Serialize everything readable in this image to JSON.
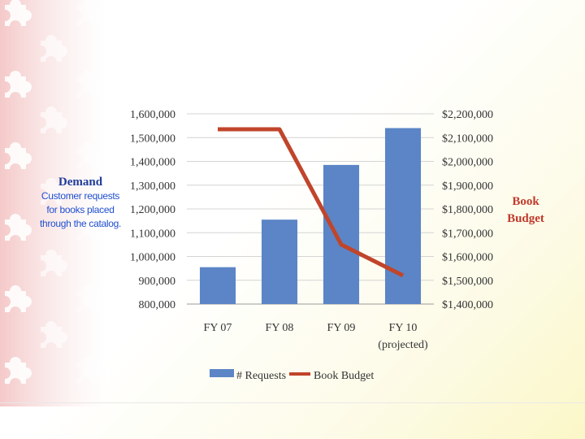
{
  "annotations": {
    "left_title": "Demand",
    "left_desc": "Customer requests for books placed through the catalog.",
    "right_title": "Book Budget"
  },
  "colors": {
    "bar": "#5b85c6",
    "line": "#c0452b",
    "puzzle": "#f6d3d3"
  },
  "chart_data": {
    "type": "bar",
    "categories": [
      "FY 07",
      "FY 08",
      "FY 09",
      "FY 10"
    ],
    "category_sublabels": [
      "",
      "",
      "",
      "(projected)"
    ],
    "series": [
      {
        "name": "# Requests",
        "type": "bar",
        "axis": "left",
        "values": [
          955000,
          1155000,
          1385000,
          1540000
        ]
      },
      {
        "name": "Book Budget",
        "type": "line",
        "axis": "right",
        "values": [
          2135000,
          2135000,
          1650000,
          1520000
        ]
      }
    ],
    "y_left": {
      "min": 800000,
      "max": 1600000,
      "step": 100000,
      "ticks": [
        "800,000",
        "900,000",
        "1,000,000",
        "1,100,000",
        "1,200,000",
        "1,300,000",
        "1,400,000",
        "1,500,000",
        "1,600,000"
      ]
    },
    "y_right": {
      "min": 1400000,
      "max": 2200000,
      "step": 100000,
      "ticks": [
        "$1,400,000",
        "$1,500,000",
        "$1,600,000",
        "$1,700,000",
        "$1,800,000",
        "$1,900,000",
        "$2,000,000",
        "$2,100,000",
        "$2,200,000"
      ]
    },
    "grid": true,
    "legend_position": "bottom",
    "legend": [
      "# Requests",
      "Book Budget"
    ]
  }
}
